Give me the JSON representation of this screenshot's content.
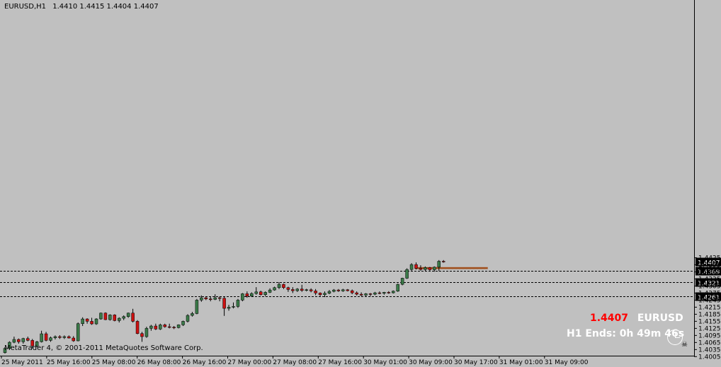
{
  "header": {
    "symbol": "EURUSD,H1",
    "ohlc": "1.4410 1.4415 1.4404 1.4407"
  },
  "copyright": "MetaTrader 4, © 2001-2011 MetaQuotes Software Corp.",
  "info": {
    "price": "1.4407",
    "symbol": "EURUSD",
    "timer": "H1 Ends: 0h 49m 46s",
    "price_color": "#ff0000",
    "text_color": "#ffffff"
  },
  "colors": {
    "background": "#c0c0c0",
    "bull": "#3a7a48",
    "bear": "#cc1111",
    "wick": "#000000",
    "zone": "#a0501e",
    "grid": "#000000"
  },
  "chart_data": {
    "type": "candlestick",
    "title": "EURUSD,H1",
    "ylim": [
      1.4,
      1.4432
    ],
    "y_ticks": [
      "1.4425",
      "1.4395",
      "1.4365",
      "1.4335",
      "1.4305",
      "1.4275",
      "1.4245",
      "1.4215",
      "1.4185",
      "1.4155",
      "1.4125",
      "1.4095",
      "1.4065",
      "1.4035",
      "1.4005"
    ],
    "x_labels": [
      "25 May 2011",
      "25 May 16:00",
      "25 May 08:00",
      "26 May 08:00",
      "26 May 16:00",
      "27 May 00:00",
      "27 May 08:00",
      "27 May 16:00",
      "30 May 01:00",
      "30 May 09:00",
      "30 May 17:00",
      "31 May 01:00",
      "31 May 09:00"
    ],
    "levels": [
      {
        "label": "1.4407",
        "value": 1.4407,
        "style": "current"
      },
      {
        "label": "1.4369",
        "value": 1.4369,
        "style": "dashed"
      },
      {
        "label": "1.4321",
        "value": 1.4321,
        "style": "dashed"
      },
      {
        "label": "1.4261",
        "value": 1.4261,
        "style": "dashed"
      }
    ],
    "zone": {
      "from_bar": 90,
      "to_bar": 106,
      "top": 1.4385,
      "bottom": 1.4377
    },
    "candles": [
      [
        1.4022,
        1.4045,
        1.4018,
        1.404
      ],
      [
        1.404,
        1.407,
        1.4035,
        1.4066
      ],
      [
        1.4066,
        1.409,
        1.4062,
        1.4078
      ],
      [
        1.4078,
        1.4082,
        1.406,
        1.4068
      ],
      [
        1.4068,
        1.4085,
        1.406,
        1.4082
      ],
      [
        1.4082,
        1.409,
        1.407,
        1.4074
      ],
      [
        1.4074,
        1.408,
        1.404,
        1.405
      ],
      [
        1.405,
        1.4072,
        1.4045,
        1.4068
      ],
      [
        1.4068,
        1.4115,
        1.4065,
        1.4102
      ],
      [
        1.4102,
        1.411,
        1.407,
        1.4074
      ],
      [
        1.4074,
        1.409,
        1.4068,
        1.4085
      ],
      [
        1.4085,
        1.4095,
        1.4078,
        1.409
      ],
      [
        1.409,
        1.4096,
        1.408,
        1.4086
      ],
      [
        1.4086,
        1.4095,
        1.408,
        1.409
      ],
      [
        1.409,
        1.4095,
        1.4082,
        1.4084
      ],
      [
        1.4084,
        1.4092,
        1.4068,
        1.4072
      ],
      [
        1.4072,
        1.415,
        1.407,
        1.4145
      ],
      [
        1.4145,
        1.4172,
        1.4135,
        1.4165
      ],
      [
        1.4165,
        1.4168,
        1.4145,
        1.4155
      ],
      [
        1.4155,
        1.417,
        1.414,
        1.4144
      ],
      [
        1.4144,
        1.4168,
        1.414,
        1.4165
      ],
      [
        1.4165,
        1.4192,
        1.4162,
        1.419
      ],
      [
        1.419,
        1.4193,
        1.416,
        1.4162
      ],
      [
        1.4162,
        1.4185,
        1.4158,
        1.4182
      ],
      [
        1.4182,
        1.4185,
        1.4155,
        1.4158
      ],
      [
        1.4158,
        1.4172,
        1.415,
        1.4168
      ],
      [
        1.4168,
        1.418,
        1.416,
        1.4175
      ],
      [
        1.4175,
        1.4192,
        1.417,
        1.419
      ],
      [
        1.419,
        1.4208,
        1.415,
        1.4155
      ],
      [
        1.4155,
        1.416,
        1.41,
        1.4103
      ],
      [
        1.4103,
        1.411,
        1.4068,
        1.409
      ],
      [
        1.409,
        1.4132,
        1.4085,
        1.4125
      ],
      [
        1.4125,
        1.414,
        1.4115,
        1.4135
      ],
      [
        1.4135,
        1.4145,
        1.4118,
        1.4122
      ],
      [
        1.4122,
        1.4145,
        1.4118,
        1.414
      ],
      [
        1.414,
        1.4145,
        1.4128,
        1.4132
      ],
      [
        1.4132,
        1.4145,
        1.4125,
        1.413
      ],
      [
        1.413,
        1.4135,
        1.4122,
        1.4128
      ],
      [
        1.4128,
        1.4142,
        1.4125,
        1.414
      ],
      [
        1.414,
        1.4158,
        1.4135,
        1.4155
      ],
      [
        1.4155,
        1.4185,
        1.415,
        1.418
      ],
      [
        1.418,
        1.4195,
        1.4175,
        1.4188
      ],
      [
        1.4188,
        1.425,
        1.4185,
        1.4245
      ],
      [
        1.4245,
        1.4265,
        1.4238,
        1.4255
      ],
      [
        1.4255,
        1.4258,
        1.4245,
        1.425
      ],
      [
        1.425,
        1.426,
        1.424,
        1.4248
      ],
      [
        1.4248,
        1.427,
        1.4245,
        1.4255
      ],
      [
        1.4255,
        1.426,
        1.424,
        1.4253
      ],
      [
        1.4253,
        1.4258,
        1.4178,
        1.421
      ],
      [
        1.421,
        1.4225,
        1.42,
        1.4215
      ],
      [
        1.4215,
        1.4235,
        1.421,
        1.4218
      ],
      [
        1.4218,
        1.425,
        1.4212,
        1.4245
      ],
      [
        1.4245,
        1.4275,
        1.424,
        1.4272
      ],
      [
        1.4272,
        1.4282,
        1.4255,
        1.4262
      ],
      [
        1.4262,
        1.4278,
        1.4258,
        1.4273
      ],
      [
        1.4273,
        1.43,
        1.4268,
        1.428
      ],
      [
        1.428,
        1.4285,
        1.4265,
        1.4268
      ],
      [
        1.4268,
        1.4282,
        1.4262,
        1.4278
      ],
      [
        1.4278,
        1.4295,
        1.4275,
        1.4288
      ],
      [
        1.4288,
        1.4302,
        1.4285,
        1.4298
      ],
      [
        1.4298,
        1.4321,
        1.4292,
        1.4312
      ],
      [
        1.4312,
        1.4315,
        1.4292,
        1.4298
      ],
      [
        1.4298,
        1.4302,
        1.428,
        1.429
      ],
      [
        1.429,
        1.43,
        1.4275,
        1.4285
      ],
      [
        1.4285,
        1.4296,
        1.428,
        1.4292
      ],
      [
        1.4292,
        1.431,
        1.428,
        1.4286
      ],
      [
        1.4286,
        1.4293,
        1.4282,
        1.4289
      ],
      [
        1.4289,
        1.4295,
        1.4278,
        1.4284
      ],
      [
        1.4284,
        1.4292,
        1.4266,
        1.4275
      ],
      [
        1.4275,
        1.4278,
        1.4262,
        1.4268
      ],
      [
        1.4268,
        1.4282,
        1.4258,
        1.4274
      ],
      [
        1.4274,
        1.4288,
        1.427,
        1.4282
      ],
      [
        1.4282,
        1.4292,
        1.4278,
        1.4288
      ],
      [
        1.4288,
        1.4292,
        1.428,
        1.4284
      ],
      [
        1.4284,
        1.4293,
        1.428,
        1.4289
      ],
      [
        1.4289,
        1.4292,
        1.4282,
        1.4285
      ],
      [
        1.4285,
        1.429,
        1.427,
        1.4276
      ],
      [
        1.4276,
        1.4282,
        1.4265,
        1.427
      ],
      [
        1.427,
        1.4278,
        1.4262,
        1.4266
      ],
      [
        1.4266,
        1.4275,
        1.4262,
        1.4272
      ],
      [
        1.4272,
        1.4275,
        1.4262,
        1.427
      ],
      [
        1.427,
        1.428,
        1.4266,
        1.4276
      ],
      [
        1.4276,
        1.4282,
        1.427,
        1.4274
      ],
      [
        1.4274,
        1.428,
        1.4268,
        1.4278
      ],
      [
        1.4278,
        1.4283,
        1.4272,
        1.4276
      ],
      [
        1.4276,
        1.4286,
        1.4273,
        1.4283
      ],
      [
        1.4283,
        1.4315,
        1.428,
        1.4312
      ],
      [
        1.4312,
        1.434,
        1.4308,
        1.4338
      ],
      [
        1.4338,
        1.438,
        1.4335,
        1.4375
      ],
      [
        1.4375,
        1.4402,
        1.437,
        1.4396
      ],
      [
        1.4396,
        1.4405,
        1.4375,
        1.438
      ],
      [
        1.438,
        1.4393,
        1.437,
        1.4375
      ],
      [
        1.4375,
        1.4388,
        1.4368,
        1.4383
      ],
      [
        1.4383,
        1.4386,
        1.437,
        1.4374
      ],
      [
        1.4374,
        1.4388,
        1.4366,
        1.4385
      ],
      [
        1.4385,
        1.4415,
        1.4368,
        1.441
      ],
      [
        1.441,
        1.4415,
        1.4404,
        1.4407
      ]
    ]
  }
}
